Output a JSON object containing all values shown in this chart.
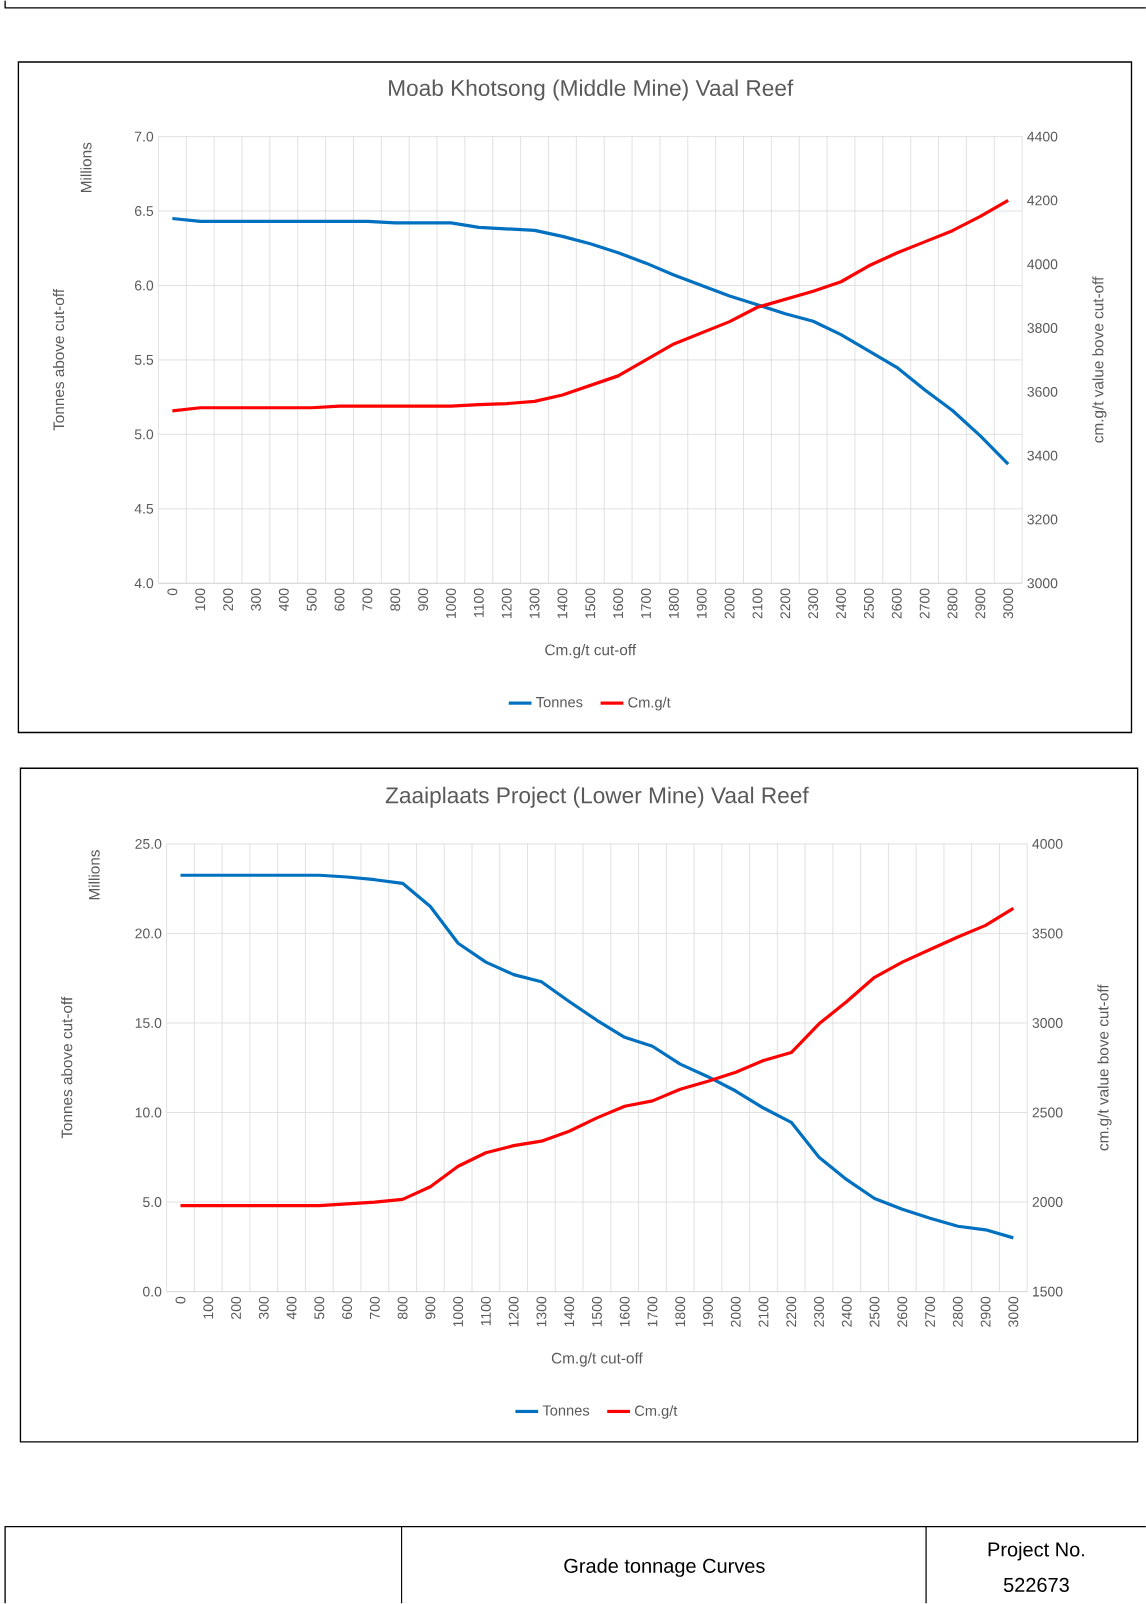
{
  "chart_data": [
    {
      "type": "line",
      "title": "Moab Khotsong (Middle Mine) Vaal Reef",
      "xlabel": "Cm.g/t cut-off",
      "ylabel": "Tonnes above cut-off",
      "y2label": "cm.g/t value bove cut-off",
      "annotations": [
        "Millions"
      ],
      "categories": [
        "0",
        "100",
        "200",
        "300",
        "400",
        "500",
        "600",
        "700",
        "800",
        "900",
        "1000",
        "1100",
        "1200",
        "1300",
        "1400",
        "1500",
        "1600",
        "1700",
        "1800",
        "1900",
        "2000",
        "2100",
        "2200",
        "2300",
        "2400",
        "2500",
        "2600",
        "2700",
        "2800",
        "2900",
        "3000"
      ],
      "series": [
        {
          "name": "Tonnes",
          "color": "#0070c0",
          "axis": "y",
          "values": [
            6.45,
            6.43,
            6.43,
            6.43,
            6.43,
            6.43,
            6.43,
            6.43,
            6.42,
            6.42,
            6.42,
            6.39,
            6.38,
            6.37,
            6.33,
            6.28,
            6.22,
            6.15,
            6.07,
            6.0,
            5.93,
            5.87,
            5.81,
            5.76,
            5.67,
            5.56,
            5.45,
            5.3,
            5.16,
            4.99,
            4.8
          ]
        },
        {
          "name": "Cm.g/t",
          "color": "#ff0000",
          "axis": "y2",
          "values": [
            3540,
            3550,
            3550,
            3550,
            3550,
            3550,
            3555,
            3555,
            3555,
            3555,
            3555,
            3560,
            3563,
            3570,
            3590,
            3620,
            3650,
            3700,
            3750,
            3785,
            3820,
            3865,
            3890,
            3915,
            3945,
            3995,
            4035,
            4070,
            4105,
            4150,
            4200
          ]
        }
      ],
      "ylim": [
        4.0,
        7.0
      ],
      "yticks": [
        {
          "value": 4.0,
          "label": "4.0"
        },
        {
          "value": 4.5,
          "label": "4.5"
        },
        {
          "value": 5.0,
          "label": "5.0"
        },
        {
          "value": 5.5,
          "label": "5.5"
        },
        {
          "value": 6.0,
          "label": "6.0"
        },
        {
          "value": 6.5,
          "label": "6.5"
        },
        {
          "value": 7.0,
          "label": "7.0"
        }
      ],
      "y2lim": [
        3000,
        4400
      ],
      "y2ticks": [
        3000,
        3200,
        3400,
        3600,
        3800,
        4000,
        4200,
        4400
      ],
      "grid": true,
      "legend": "bottom"
    },
    {
      "type": "line",
      "title": "Zaaiplaats Project (Lower Mine) Vaal Reef",
      "xlabel": "Cm.g/t cut-off",
      "ylabel": "Tonnes above cut-off",
      "y2label": "cm.g/t value bove cut-off",
      "annotations": [
        "Millions"
      ],
      "categories": [
        "0",
        "100",
        "200",
        "300",
        "400",
        "500",
        "600",
        "700",
        "800",
        "900",
        "1000",
        "1100",
        "1200",
        "1300",
        "1400",
        "1500",
        "1600",
        "1700",
        "1800",
        "1900",
        "2000",
        "2100",
        "2200",
        "2300",
        "2400",
        "2500",
        "2600",
        "2700",
        "2800",
        "2900",
        "3000"
      ],
      "series": [
        {
          "name": "Tonnes",
          "color": "#0070c0",
          "axis": "y",
          "values": [
            23.25,
            23.25,
            23.25,
            23.25,
            23.25,
            23.25,
            23.15,
            23.0,
            22.8,
            21.5,
            19.45,
            18.4,
            17.7,
            17.3,
            16.2,
            15.15,
            14.2,
            13.7,
            12.7,
            12.0,
            11.2,
            10.25,
            9.45,
            7.5,
            6.25,
            5.2,
            4.6,
            4.1,
            3.65,
            3.45,
            3.0
          ]
        },
        {
          "name": "Cm.g/t",
          "color": "#ff0000",
          "axis": "y2",
          "values": [
            1980,
            1980,
            1980,
            1980,
            1980,
            1980,
            1990,
            2000,
            2015,
            2085,
            2200,
            2275,
            2315,
            2340,
            2395,
            2470,
            2535,
            2565,
            2630,
            2675,
            2725,
            2790,
            2835,
            2995,
            3120,
            3255,
            3340,
            3410,
            3480,
            3545,
            3640
          ]
        }
      ],
      "ylim": [
        0.0,
        25.0
      ],
      "yticks": [
        {
          "value": 0,
          "label": "0.0"
        },
        {
          "value": 5,
          "label": "5.0"
        },
        {
          "value": 10,
          "label": "10.0"
        },
        {
          "value": 15,
          "label": "15.0"
        },
        {
          "value": 20,
          "label": "20.0"
        },
        {
          "value": 25,
          "label": "25.0"
        }
      ],
      "y2lim": [
        1500,
        4000
      ],
      "y2ticks": [
        1500,
        2000,
        2500,
        3000,
        3500,
        4000
      ],
      "grid": true,
      "legend": "bottom"
    },
    {
      "type": "other",
      "annotations": [
        "Grade tonnage Curves",
        "Project No.",
        "522673"
      ]
    }
  ]
}
